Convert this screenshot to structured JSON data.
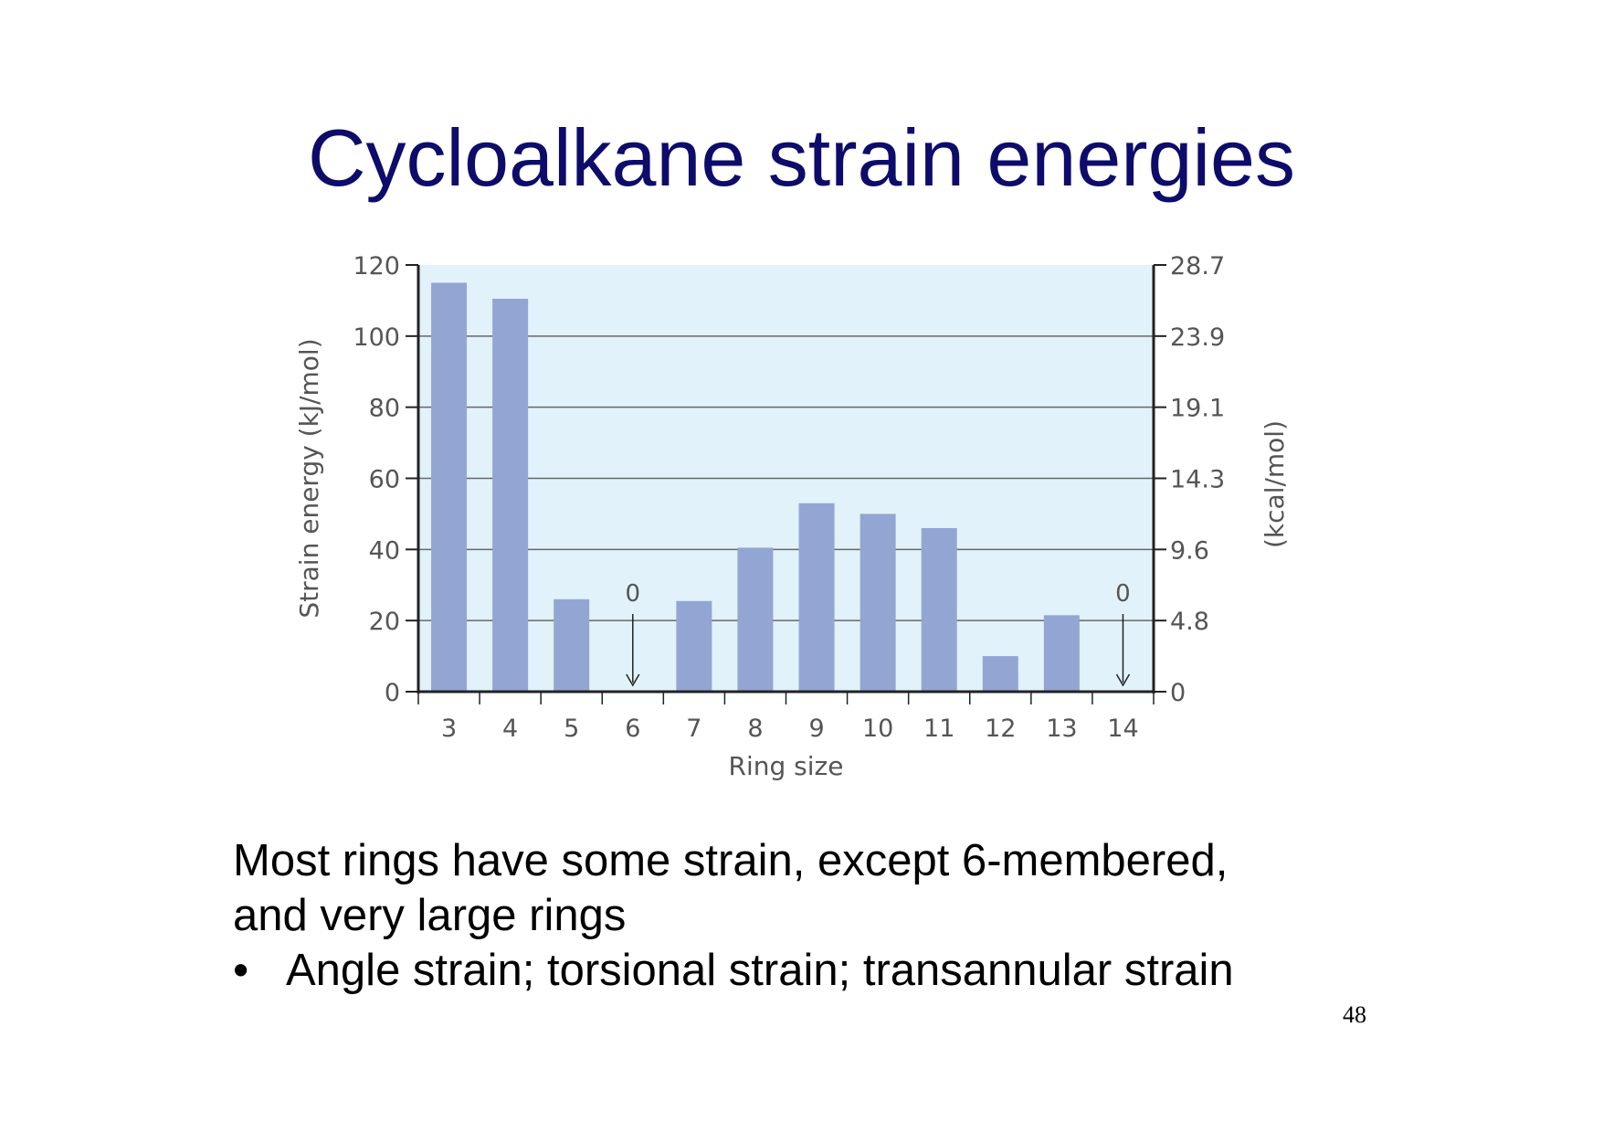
{
  "slide": {
    "title": "Cycloalkane strain energies",
    "paragraph_line1": "Most rings have some strain, except 6-membered,",
    "paragraph_line2": "and very large rings",
    "bullet_symbol": "•",
    "bullet_text": "Angle strain; torsional strain; transannular strain",
    "page_number": "48"
  },
  "chart_data": {
    "type": "bar",
    "title": "",
    "xlabel": "Ring size",
    "ylabel": "Strain energy (kJ/mol)",
    "y2label": "(kcal/mol)",
    "categories": [
      "3",
      "4",
      "5",
      "6",
      "7",
      "8",
      "9",
      "10",
      "11",
      "12",
      "13",
      "14"
    ],
    "values": [
      115,
      110.5,
      26,
      0,
      25.5,
      40.5,
      53,
      50,
      46,
      10,
      21.5,
      0
    ],
    "zero_annotations": [
      {
        "category": "6",
        "label": "0"
      },
      {
        "category": "14",
        "label": "0"
      }
    ],
    "ylim": [
      0,
      120
    ],
    "yticks": [
      0,
      20,
      40,
      60,
      80,
      100,
      120
    ],
    "y2ticks": [
      "0",
      "4.8",
      "9.6",
      "14.3",
      "19.1",
      "23.9",
      "28.7"
    ],
    "grid": true,
    "colors": {
      "bar": "#93a6d3",
      "plot_background": "#e1f2fb",
      "gridline": "#666666",
      "axis": "#222222",
      "title": "#0d0c6b"
    }
  }
}
